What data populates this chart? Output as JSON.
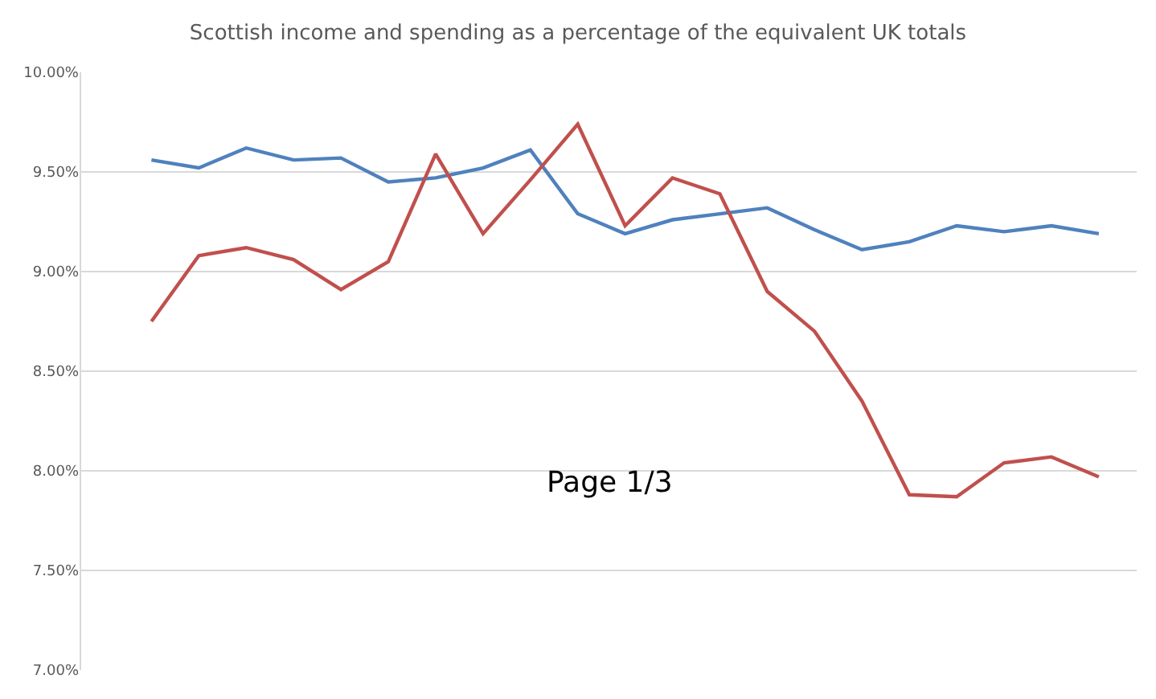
{
  "chart_data": {
    "type": "line",
    "title": "Scottish income and spending as a percentage of the equivalent UK totals",
    "categories": [
      null,
      null,
      null,
      null,
      null,
      null,
      null,
      null,
      null,
      null,
      null,
      null,
      null,
      null,
      null,
      null,
      null,
      null,
      null,
      null,
      null
    ],
    "series": [
      {
        "color": "#4f81bd",
        "values": [
          9.56,
          9.52,
          9.62,
          9.56,
          9.57,
          9.45,
          9.47,
          9.52,
          9.61,
          9.29,
          9.19,
          9.26,
          9.29,
          9.32,
          9.21,
          9.11,
          9.15,
          9.23,
          9.2,
          9.23,
          9.19
        ]
      },
      {
        "color": "#c0504d",
        "values": [
          8.75,
          9.08,
          9.12,
          9.06,
          8.91,
          9.05,
          9.59,
          9.19,
          9.46,
          9.74,
          9.23,
          9.47,
          9.39,
          8.9,
          8.7,
          8.35,
          7.88,
          7.87,
          8.04,
          8.07,
          7.97
        ]
      }
    ],
    "ylim": [
      7.0,
      10.0
    ],
    "yticks": [
      {
        "value": 7.0,
        "label": "7.00%"
      },
      {
        "value": 7.5,
        "label": "7.50%"
      },
      {
        "value": 8.0,
        "label": "8.00%"
      },
      {
        "value": 8.5,
        "label": "8.50%"
      },
      {
        "value": 9.0,
        "label": "9.00%"
      },
      {
        "value": 9.5,
        "label": "9.50%"
      },
      {
        "value": 10.0,
        "label": "10.00%"
      }
    ],
    "grid": "y",
    "marker": "none",
    "line_style": "solid",
    "annotations": [
      "Page 1/3"
    ]
  }
}
